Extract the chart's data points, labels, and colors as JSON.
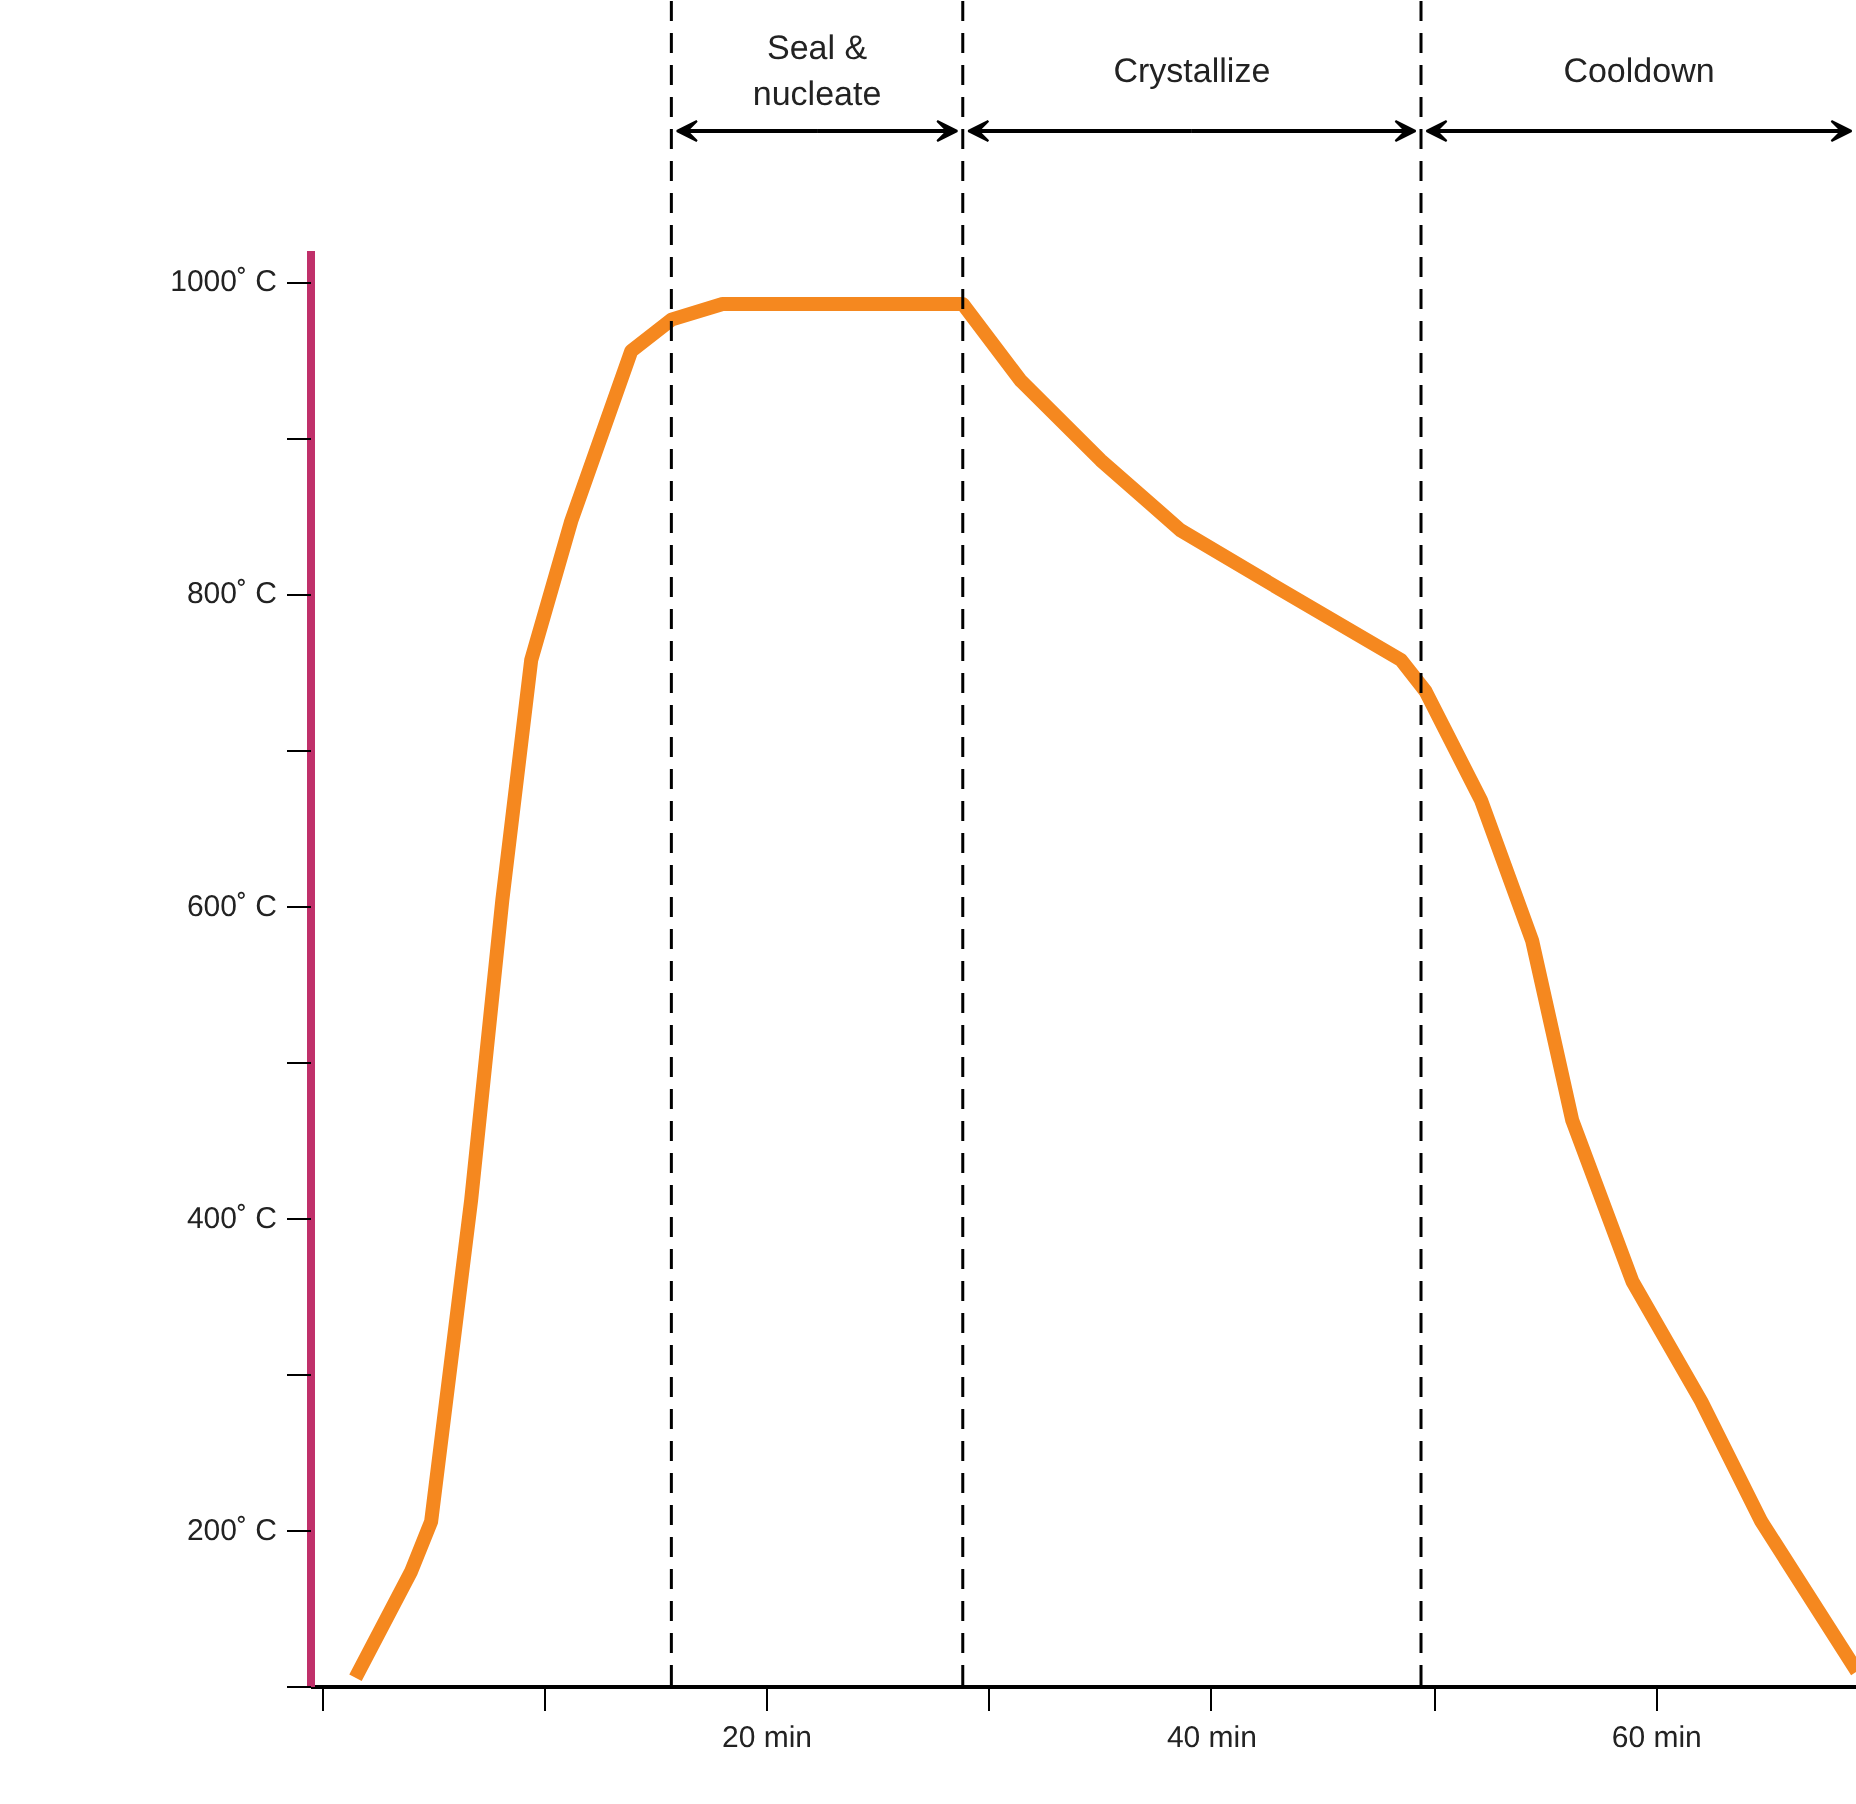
{
  "chart_data": {
    "type": "line",
    "x": [
      1.5,
      4.0,
      4.9,
      6.7,
      8.1,
      9.4,
      11.2,
      13.9,
      15.7,
      18.0,
      28.8,
      31.4,
      35.0,
      38.6,
      43.1,
      48.5,
      49.6,
      52.1,
      54.4,
      56.2,
      58.9,
      62.0,
      64.7,
      69.0
    ],
    "series": [
      {
        "color": "#f5881f",
        "values": [
          106,
          174,
          206,
          412,
          604,
          758,
          847,
          956,
          976,
          986,
          986,
          937,
          886,
          841,
          803,
          758,
          738,
          668,
          578,
          463,
          360,
          283,
          206,
          110
        ]
      }
    ],
    "xlim": [
      -0.5,
      69
    ],
    "xticks": [
      {
        "value": 0,
        "label": null
      },
      {
        "value": 10,
        "label": null
      },
      {
        "value": 20,
        "label": "20 min"
      },
      {
        "value": 30,
        "label": null
      },
      {
        "value": 40,
        "label": "40 min"
      },
      {
        "value": 50,
        "label": null
      },
      {
        "value": 60,
        "label": "60 min"
      }
    ],
    "ylim": [
      100,
      1020
    ],
    "yticks": [
      {
        "value": 100,
        "label": null
      },
      {
        "value": 200,
        "label": "200˚ C"
      },
      {
        "value": 300,
        "label": null
      },
      {
        "value": 400,
        "label": "400˚ C"
      },
      {
        "value": 500,
        "label": null
      },
      {
        "value": 600,
        "label": "600˚ C"
      },
      {
        "value": 700,
        "label": null
      },
      {
        "value": 800,
        "label": "800˚ C"
      },
      {
        "value": 900,
        "label": null
      },
      {
        "value": 1000,
        "label": "1000˚ C"
      }
    ],
    "ref_lines": [
      {
        "axis": "x",
        "value": 15.7,
        "line_style": "dashed",
        "color": "#000000"
      },
      {
        "axis": "x",
        "value": 28.8,
        "line_style": "dashed",
        "color": "#000000"
      },
      {
        "axis": "x",
        "value": 49.4,
        "line_style": "dashed",
        "color": "#000000"
      }
    ],
    "annotations": [
      "Seal &\nnucleate",
      "Crystallize",
      "Cooldown"
    ],
    "grid": false,
    "line_style": "solid",
    "marker": "none"
  }
}
